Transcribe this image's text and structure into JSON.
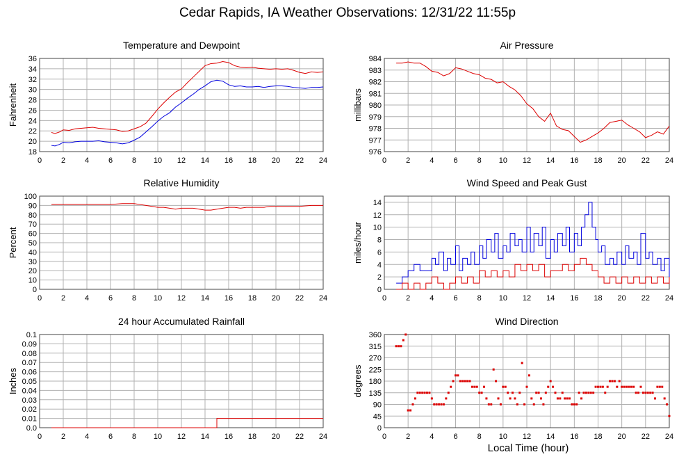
{
  "page": {
    "title": "Cedar Rapids, IA Weather Observations: 12/31/22 11:55p",
    "x_axis_label": "Local Time (hour)"
  },
  "colors": {
    "red_series": "#dd0000",
    "blue_series": "#0000dd",
    "grid": "#b0b0b0"
  },
  "chart_data": [
    {
      "id": "temp",
      "type": "line",
      "title": "Temperature and Dewpoint",
      "ylabel": "Fahrenheit",
      "xlim": [
        0,
        24
      ],
      "ylim": [
        18,
        36
      ],
      "xticks": [
        0,
        2,
        4,
        6,
        8,
        10,
        12,
        14,
        16,
        18,
        20,
        22,
        24
      ],
      "yticks": [
        18,
        20,
        22,
        24,
        26,
        28,
        30,
        32,
        34,
        36
      ],
      "grid": true,
      "series": [
        {
          "color": "red",
          "step": false,
          "x": [
            1,
            1.3,
            1.7,
            2,
            2.5,
            3,
            3.5,
            4,
            4.5,
            5,
            5.5,
            6,
            6.5,
            7,
            7.5,
            8,
            8.5,
            9,
            9.5,
            10,
            10.5,
            11,
            11.5,
            12,
            12.5,
            13,
            13.5,
            14,
            14.5,
            15,
            15.5,
            16,
            16.5,
            17,
            17.5,
            18,
            18.5,
            19,
            19.5,
            20,
            20.5,
            21,
            21.5,
            22,
            22.5,
            23,
            23.5,
            24
          ],
          "y": [
            21.7,
            21.5,
            21.8,
            22.2,
            22.1,
            22.4,
            22.5,
            22.6,
            22.7,
            22.5,
            22.4,
            22.3,
            22.2,
            21.9,
            22.0,
            22.4,
            22.8,
            23.5,
            24.8,
            26.2,
            27.4,
            28.5,
            29.5,
            30.1,
            31.3,
            32.4,
            33.5,
            34.6,
            35.0,
            35.1,
            35.4,
            35.2,
            34.6,
            34.3,
            34.2,
            34.3,
            34.1,
            34.0,
            33.9,
            34.0,
            33.9,
            34.0,
            33.7,
            33.3,
            33.1,
            33.4,
            33.3,
            33.4
          ]
        },
        {
          "color": "blue",
          "step": false,
          "x": [
            1,
            1.3,
            1.7,
            2,
            2.5,
            3,
            3.5,
            4,
            4.5,
            5,
            5.5,
            6,
            6.5,
            7,
            7.5,
            8,
            8.5,
            9,
            9.5,
            10,
            10.5,
            11,
            11.5,
            12,
            12.5,
            13,
            13.5,
            14,
            14.5,
            15,
            15.5,
            16,
            16.5,
            17,
            17.5,
            18,
            18.5,
            19,
            19.5,
            20,
            20.5,
            21,
            21.5,
            22,
            22.5,
            23,
            23.5,
            24
          ],
          "y": [
            19.2,
            19.1,
            19.4,
            19.8,
            19.7,
            19.9,
            20.0,
            20.0,
            20.0,
            20.1,
            19.9,
            19.8,
            19.7,
            19.5,
            19.7,
            20.2,
            20.8,
            21.8,
            22.8,
            23.9,
            24.8,
            25.5,
            26.6,
            27.4,
            28.3,
            29.1,
            30.0,
            30.7,
            31.5,
            31.8,
            31.6,
            30.9,
            30.6,
            30.7,
            30.5,
            30.5,
            30.6,
            30.4,
            30.6,
            30.7,
            30.7,
            30.6,
            30.4,
            30.3,
            30.2,
            30.4,
            30.4,
            30.5
          ]
        }
      ]
    },
    {
      "id": "pressure",
      "type": "line",
      "title": "Air Pressure",
      "ylabel": "millibars",
      "xlim": [
        0,
        24
      ],
      "ylim": [
        976,
        984
      ],
      "xticks": [
        0,
        2,
        4,
        6,
        8,
        10,
        12,
        14,
        16,
        18,
        20,
        22,
        24
      ],
      "yticks": [
        976,
        977,
        978,
        979,
        980,
        981,
        982,
        983,
        984
      ],
      "grid": true,
      "series": [
        {
          "color": "red",
          "step": false,
          "x": [
            1,
            1.5,
            2,
            2.5,
            3,
            3.5,
            4,
            4.5,
            5,
            5.5,
            6,
            6.5,
            7,
            7.5,
            8,
            8.5,
            9,
            9.5,
            10,
            10.5,
            11,
            11.5,
            12,
            12.5,
            13,
            13.5,
            14,
            14.5,
            15,
            15.5,
            16,
            16.5,
            17,
            17.5,
            18,
            18.5,
            19,
            19.5,
            20,
            20.5,
            21,
            21.5,
            22,
            22.5,
            23,
            23.5,
            24
          ],
          "y": [
            983.6,
            983.6,
            983.7,
            983.6,
            983.6,
            983.3,
            982.9,
            982.8,
            982.5,
            982.7,
            983.2,
            983.1,
            982.9,
            982.7,
            982.6,
            982.3,
            982.2,
            981.9,
            982.0,
            981.6,
            981.3,
            980.8,
            980.1,
            979.7,
            979.0,
            978.6,
            979.3,
            978.2,
            977.9,
            977.8,
            977.3,
            976.8,
            977.0,
            977.3,
            977.6,
            978.0,
            978.5,
            978.6,
            978.7,
            978.3,
            978.0,
            977.7,
            977.2,
            977.4,
            977.7,
            977.5,
            978.2
          ]
        }
      ]
    },
    {
      "id": "humidity",
      "type": "line",
      "title": "Relative Humidity",
      "ylabel": "Percent",
      "xlim": [
        0,
        24
      ],
      "ylim": [
        0,
        100
      ],
      "xticks": [
        0,
        2,
        4,
        6,
        8,
        10,
        12,
        14,
        16,
        18,
        20,
        22,
        24
      ],
      "yticks": [
        0,
        10,
        20,
        30,
        40,
        50,
        60,
        70,
        80,
        90,
        100
      ],
      "grid": true,
      "series": [
        {
          "color": "red",
          "step": false,
          "x": [
            1,
            2,
            3,
            4,
            5,
            6,
            7,
            7.5,
            8,
            8.5,
            9,
            9.5,
            10,
            10.5,
            11,
            11.5,
            12,
            12.5,
            13,
            13.5,
            14,
            14.5,
            15,
            15.5,
            16,
            16.5,
            17,
            17.5,
            18,
            18.5,
            19,
            19.5,
            20,
            21,
            22,
            23,
            24
          ],
          "y": [
            91,
            91,
            91,
            91,
            91,
            91,
            92,
            92,
            92,
            91,
            90,
            89,
            88,
            88,
            87,
            86,
            87,
            87,
            87,
            86,
            85,
            85,
            86,
            87,
            88,
            88,
            87,
            88,
            88,
            88,
            88,
            89,
            89,
            89,
            89,
            90,
            90
          ]
        }
      ]
    },
    {
      "id": "wind",
      "type": "line",
      "title": "Wind Speed and Peak Gust",
      "ylabel": "miles/hour",
      "xlim": [
        0,
        24
      ],
      "ylim": [
        0,
        15
      ],
      "xticks": [
        0,
        2,
        4,
        6,
        8,
        10,
        12,
        14,
        16,
        18,
        20,
        22,
        24
      ],
      "yticks": [
        0,
        2,
        4,
        6,
        8,
        10,
        12,
        14
      ],
      "grid": true,
      "series": [
        {
          "color": "blue",
          "step": true,
          "x": [
            1,
            1.5,
            2,
            2.5,
            3,
            3.5,
            4,
            4.3,
            4.6,
            5,
            5.3,
            5.6,
            6,
            6.3,
            6.6,
            7,
            7.3,
            7.6,
            8,
            8.3,
            8.6,
            9,
            9.3,
            9.6,
            10,
            10.3,
            10.6,
            11,
            11.3,
            11.6,
            12,
            12.3,
            12.6,
            13,
            13.3,
            13.6,
            14,
            14.3,
            14.6,
            15,
            15.3,
            15.6,
            16,
            16.3,
            16.6,
            16.9,
            17.2,
            17.5,
            17.8,
            18,
            18.3,
            18.6,
            19,
            19.3,
            19.6,
            20,
            20.3,
            20.6,
            21,
            21.3,
            21.6,
            22,
            22.3,
            22.6,
            23,
            23.3,
            23.6,
            24
          ],
          "y": [
            1,
            2,
            3,
            4,
            3,
            3,
            5,
            4,
            6,
            3,
            5,
            4,
            7,
            3,
            5,
            4,
            6,
            4,
            7,
            5,
            8,
            6,
            9,
            5,
            7,
            6,
            9,
            7,
            8,
            6,
            10,
            6,
            9,
            7,
            10,
            5,
            8,
            6,
            9,
            7,
            10,
            6,
            9,
            7,
            10,
            12,
            14,
            10,
            8,
            6,
            7,
            4,
            5,
            4,
            6,
            4,
            7,
            5,
            6,
            4,
            9,
            5,
            6,
            4,
            5,
            3,
            5,
            2
          ]
        },
        {
          "color": "red",
          "step": true,
          "x": [
            1,
            1.5,
            2,
            2.5,
            3,
            3.5,
            4,
            4.5,
            5,
            5.5,
            6,
            6.5,
            7,
            7.5,
            8,
            8.5,
            9,
            9.5,
            10,
            10.5,
            11,
            11.5,
            12,
            12.5,
            13,
            13.5,
            14,
            14.5,
            15,
            15.5,
            16,
            16.5,
            17,
            17.5,
            18,
            18.5,
            19,
            19.5,
            20,
            20.5,
            21,
            21.5,
            22,
            22.5,
            23,
            23.5,
            24
          ],
          "y": [
            0,
            1,
            0,
            1,
            0,
            1,
            2,
            1,
            0,
            1,
            2,
            1,
            2,
            1,
            3,
            2,
            3,
            2,
            3,
            2,
            4,
            3,
            4,
            3,
            4,
            2,
            3,
            3,
            4,
            3,
            4,
            5,
            4,
            3,
            2,
            1,
            2,
            1,
            2,
            1,
            2,
            1,
            2,
            1,
            2,
            1,
            2
          ]
        }
      ]
    },
    {
      "id": "rain",
      "type": "line",
      "title": "24 hour Accumulated Rainfall",
      "ylabel": "Inches",
      "xlim": [
        0,
        24
      ],
      "ylim": [
        0,
        0.1
      ],
      "xticks": [
        0,
        2,
        4,
        6,
        8,
        10,
        12,
        14,
        16,
        18,
        20,
        22,
        24
      ],
      "yticks": [
        0.0,
        0.01,
        0.02,
        0.03,
        0.04,
        0.05,
        0.06,
        0.07,
        0.08,
        0.09,
        0.1
      ],
      "ytick_labels": [
        "0.0",
        "0.01",
        "0.02",
        "0.03",
        "0.04",
        "0.05",
        "0.06",
        "0.07",
        "0.08",
        "0.09",
        "0.1"
      ],
      "grid": true,
      "series": [
        {
          "color": "red",
          "step": true,
          "x": [
            1,
            15,
            24
          ],
          "y": [
            0,
            0.01,
            0.01
          ]
        }
      ]
    },
    {
      "id": "direction",
      "type": "scatter",
      "title": "Wind Direction",
      "ylabel": "degrees",
      "xlim": [
        0,
        24
      ],
      "ylim": [
        0,
        360
      ],
      "xticks": [
        0,
        2,
        4,
        6,
        8,
        10,
        12,
        14,
        16,
        18,
        20,
        22,
        24
      ],
      "yticks": [
        0,
        45,
        90,
        135,
        180,
        225,
        270,
        315,
        360
      ],
      "grid": true,
      "series": [
        {
          "color": "red",
          "x": [
            1.0,
            1.2,
            1.4,
            1.6,
            1.8,
            2.0,
            2.2,
            2.4,
            2.6,
            2.8,
            3.0,
            3.2,
            3.4,
            3.6,
            3.8,
            4.0,
            4.2,
            4.4,
            4.6,
            4.8,
            5.0,
            5.2,
            5.4,
            5.6,
            5.8,
            6.0,
            6.2,
            6.4,
            6.6,
            6.8,
            7.0,
            7.2,
            7.4,
            7.6,
            7.8,
            8.0,
            8.2,
            8.4,
            8.6,
            8.8,
            9.0,
            9.2,
            9.4,
            9.6,
            9.8,
            10.0,
            10.2,
            10.4,
            10.6,
            10.8,
            11.0,
            11.2,
            11.4,
            11.6,
            11.8,
            12.0,
            12.2,
            12.4,
            12.6,
            12.8,
            13.0,
            13.2,
            13.4,
            13.6,
            13.8,
            14.0,
            14.2,
            14.4,
            14.6,
            14.8,
            15.0,
            15.2,
            15.4,
            15.6,
            15.8,
            16.0,
            16.2,
            16.4,
            16.6,
            16.8,
            17.0,
            17.2,
            17.4,
            17.6,
            17.8,
            18.0,
            18.2,
            18.4,
            18.6,
            18.8,
            19.0,
            19.2,
            19.4,
            19.6,
            19.8,
            20.0,
            20.2,
            20.4,
            20.6,
            20.8,
            21.0,
            21.2,
            21.4,
            21.6,
            21.8,
            22.0,
            22.2,
            22.4,
            22.6,
            22.8,
            23.0,
            23.2,
            23.4,
            23.6,
            23.8,
            24.0
          ],
          "y": [
            315,
            315,
            315,
            338,
            360,
            67,
            67,
            90,
            113,
            135,
            135,
            135,
            135,
            135,
            135,
            113,
            90,
            90,
            90,
            90,
            90,
            113,
            135,
            158,
            180,
            202,
            202,
            180,
            180,
            180,
            180,
            180,
            158,
            158,
            158,
            135,
            135,
            158,
            113,
            90,
            90,
            225,
            180,
            113,
            90,
            158,
            158,
            135,
            113,
            135,
            113,
            90,
            135,
            250,
            90,
            158,
            202,
            113,
            90,
            135,
            135,
            113,
            90,
            135,
            158,
            180,
            158,
            135,
            113,
            113,
            135,
            113,
            113,
            113,
            90,
            90,
            90,
            135,
            113,
            135,
            135,
            135,
            135,
            135,
            158,
            158,
            158,
            158,
            135,
            158,
            180,
            180,
            180,
            158,
            180,
            158,
            158,
            158,
            158,
            158,
            158,
            135,
            135,
            158,
            135,
            135,
            135,
            135,
            135,
            113,
            158,
            158,
            158,
            113,
            90,
            45
          ]
        }
      ]
    }
  ]
}
